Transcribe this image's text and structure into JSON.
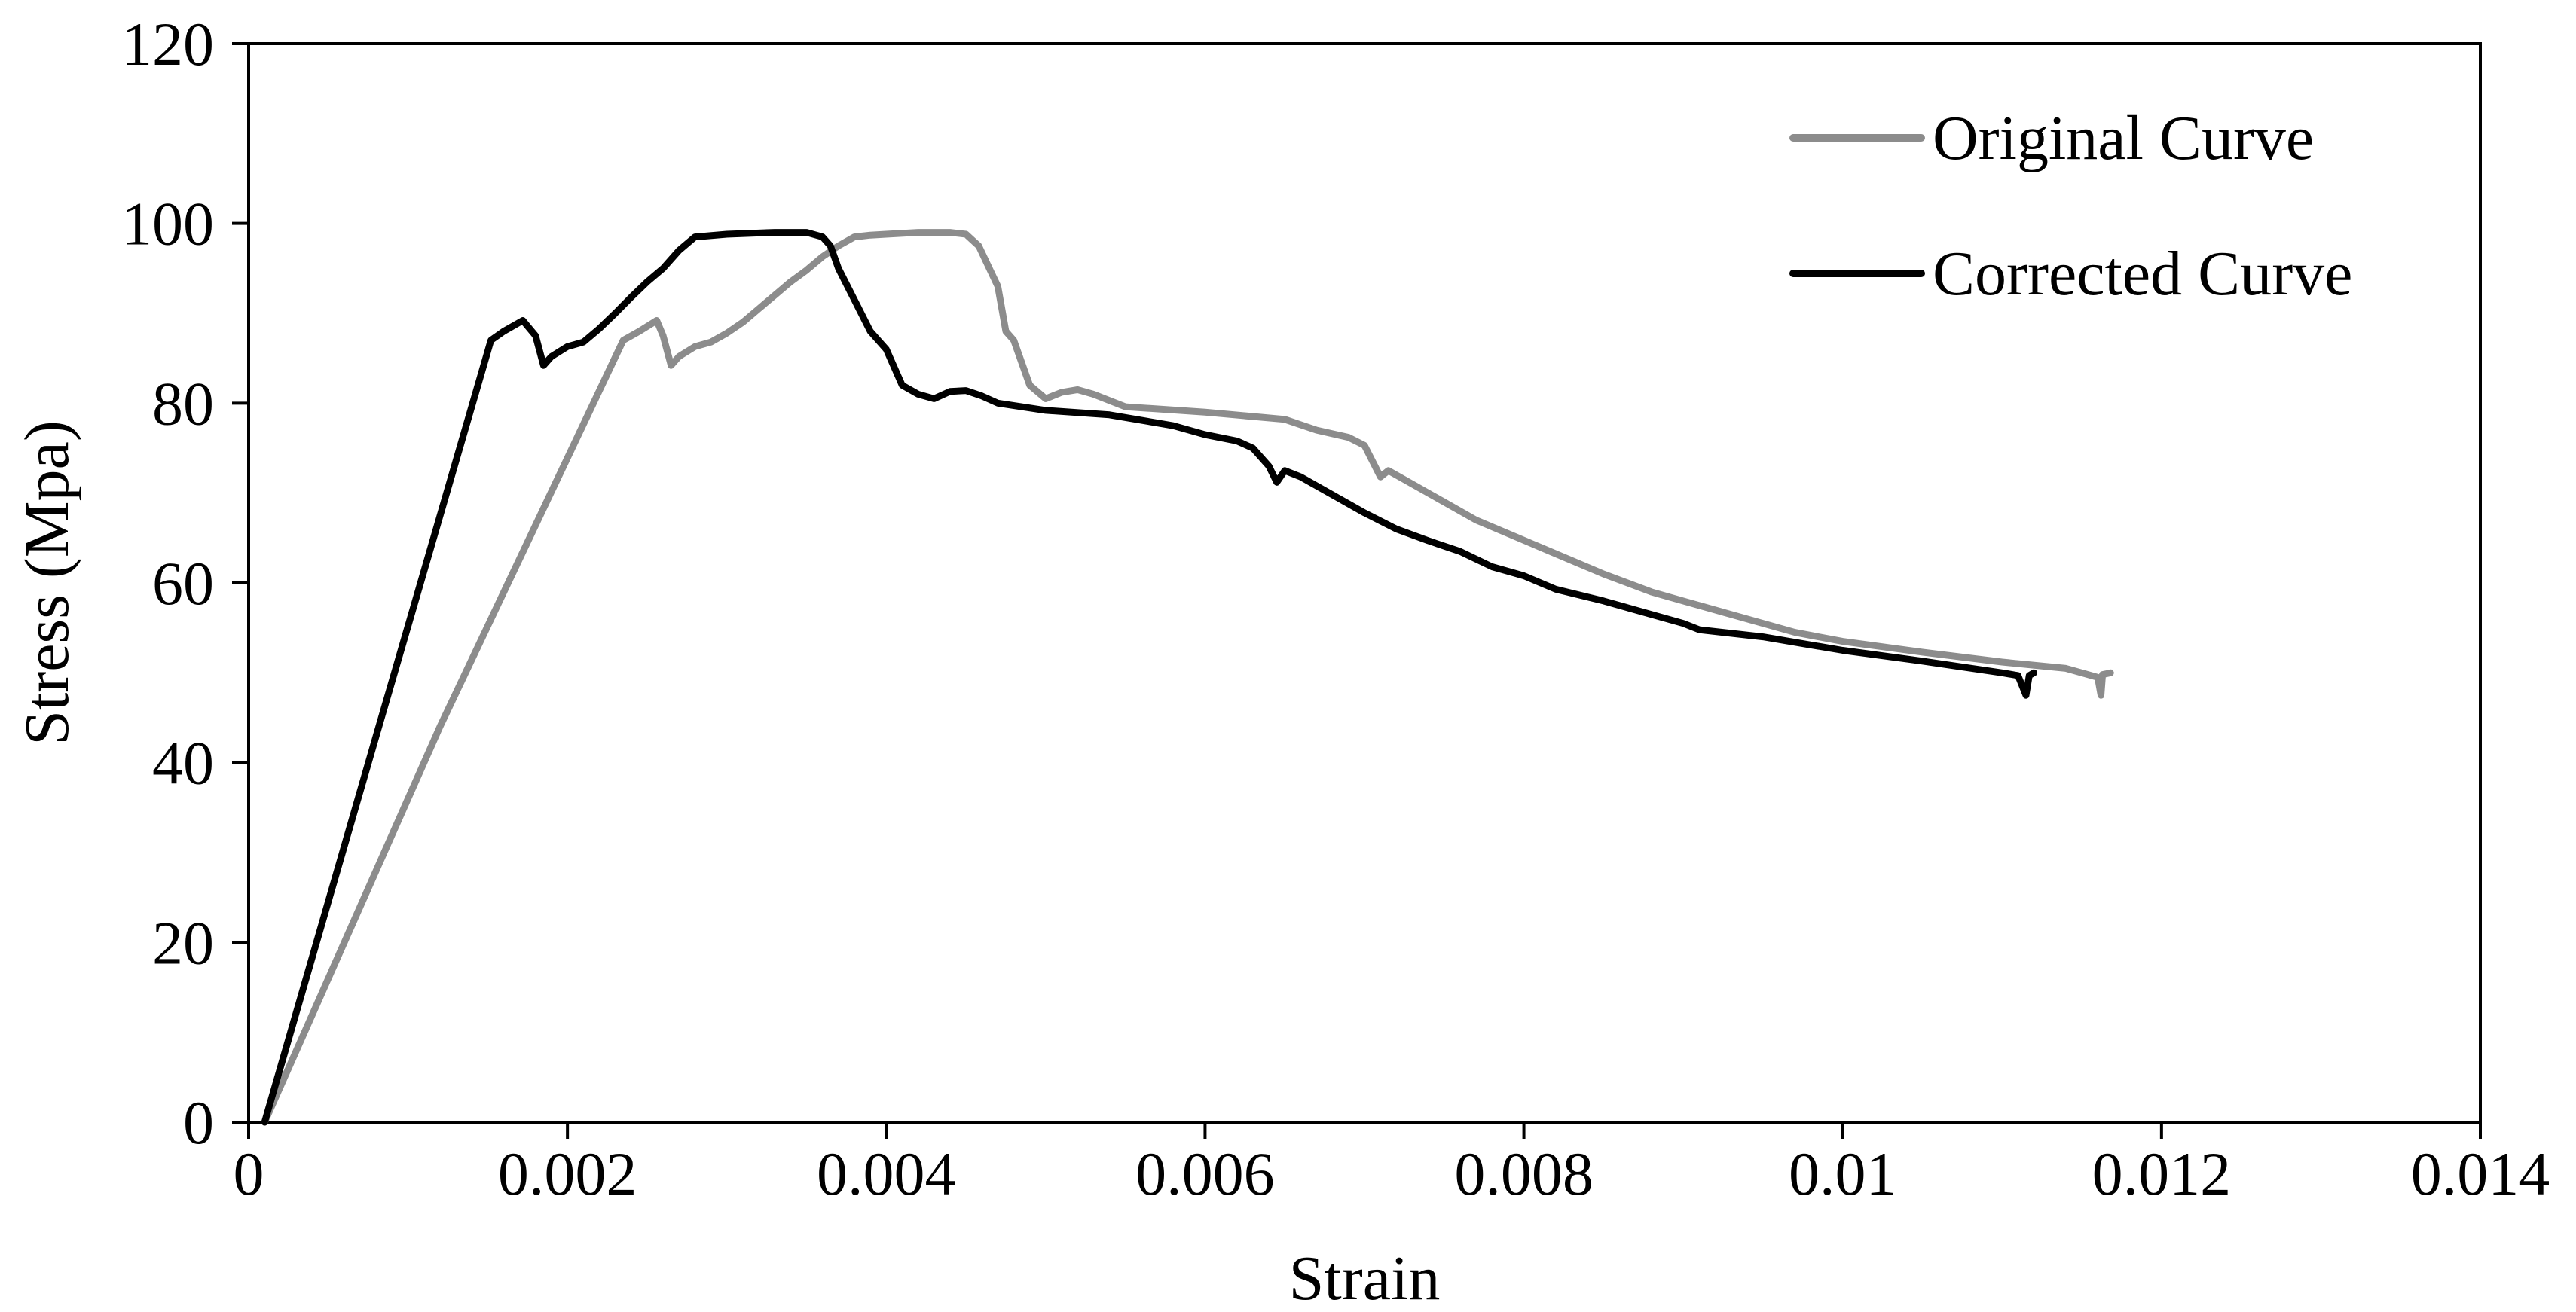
{
  "chart_data": {
    "type": "line",
    "title": "",
    "xlabel": "Strain",
    "ylabel": "Stress (Mpa)",
    "xlim": [
      0,
      0.014
    ],
    "ylim": [
      0,
      120
    ],
    "xticks": [
      0,
      0.002,
      0.004,
      0.006,
      0.008,
      0.01,
      0.012,
      0.014
    ],
    "xtick_labels": [
      "0",
      "0.002",
      "0.004",
      "0.006",
      "0.008",
      "0.01",
      "0.012",
      "0.014"
    ],
    "yticks": [
      0,
      20,
      40,
      60,
      80,
      100,
      120
    ],
    "ytick_labels": [
      "0",
      "20",
      "40",
      "60",
      "80",
      "100",
      "120"
    ],
    "grid": false,
    "legend_position": "top-right",
    "series": [
      {
        "name": "Original Curve",
        "color": "#8c8c8c",
        "points": [
          [
            0.0001,
            0
          ],
          [
            0.0012,
            44
          ],
          [
            0.00235,
            87
          ],
          [
            0.00245,
            88
          ],
          [
            0.00256,
            89.2
          ],
          [
            0.0026,
            87.5
          ],
          [
            0.00265,
            84.2
          ],
          [
            0.0027,
            85.2
          ],
          [
            0.0028,
            86.3
          ],
          [
            0.0029,
            86.8
          ],
          [
            0.003,
            87.8
          ],
          [
            0.0031,
            89
          ],
          [
            0.0032,
            90.5
          ],
          [
            0.0033,
            92
          ],
          [
            0.0034,
            93.5
          ],
          [
            0.0035,
            94.8
          ],
          [
            0.0036,
            96.3
          ],
          [
            0.0037,
            97.5
          ],
          [
            0.0038,
            98.5
          ],
          [
            0.0039,
            98.7
          ],
          [
            0.004,
            98.8
          ],
          [
            0.0042,
            99
          ],
          [
            0.0043,
            99
          ],
          [
            0.0044,
            99
          ],
          [
            0.0045,
            98.8
          ],
          [
            0.00458,
            97.5
          ],
          [
            0.0047,
            93
          ],
          [
            0.00475,
            88
          ],
          [
            0.0048,
            87
          ],
          [
            0.0049,
            82
          ],
          [
            0.005,
            80.5
          ],
          [
            0.0051,
            81.2
          ],
          [
            0.0052,
            81.5
          ],
          [
            0.0053,
            81
          ],
          [
            0.0054,
            80.3
          ],
          [
            0.0055,
            79.6
          ],
          [
            0.006,
            79
          ],
          [
            0.0065,
            78.2
          ],
          [
            0.0067,
            77
          ],
          [
            0.0069,
            76.2
          ],
          [
            0.007,
            75.3
          ],
          [
            0.0071,
            71.8
          ],
          [
            0.00715,
            72.5
          ],
          [
            0.0073,
            71
          ],
          [
            0.0075,
            69
          ],
          [
            0.0077,
            67
          ],
          [
            0.0079,
            65.5
          ],
          [
            0.0081,
            64
          ],
          [
            0.0083,
            62.5
          ],
          [
            0.0085,
            61
          ],
          [
            0.0088,
            59
          ],
          [
            0.009,
            58
          ],
          [
            0.0093,
            56.5
          ],
          [
            0.0095,
            55.5
          ],
          [
            0.0097,
            54.5
          ],
          [
            0.01,
            53.5
          ],
          [
            0.0105,
            52.3
          ],
          [
            0.011,
            51.2
          ],
          [
            0.0114,
            50.5
          ],
          [
            0.0116,
            49.5
          ],
          [
            0.01162,
            47.5
          ],
          [
            0.01163,
            49.8
          ],
          [
            0.01168,
            50
          ]
        ]
      },
      {
        "name": "Corrected Curve",
        "color": "#000000",
        "points": [
          [
            0.0001,
            0
          ],
          [
            0.0008,
            43
          ],
          [
            0.00152,
            87
          ],
          [
            0.0016,
            88
          ],
          [
            0.00172,
            89.2
          ],
          [
            0.0018,
            87.5
          ],
          [
            0.00185,
            84.2
          ],
          [
            0.0019,
            85.2
          ],
          [
            0.002,
            86.3
          ],
          [
            0.0021,
            86.8
          ],
          [
            0.0022,
            88.3
          ],
          [
            0.0023,
            90
          ],
          [
            0.0024,
            91.8
          ],
          [
            0.0025,
            93.5
          ],
          [
            0.0026,
            95
          ],
          [
            0.0027,
            97
          ],
          [
            0.0028,
            98.5
          ],
          [
            0.003,
            98.8
          ],
          [
            0.0033,
            99
          ],
          [
            0.0035,
            99
          ],
          [
            0.0036,
            98.5
          ],
          [
            0.00365,
            97.5
          ],
          [
            0.0037,
            95
          ],
          [
            0.0038,
            91.5
          ],
          [
            0.0039,
            88
          ],
          [
            0.004,
            86
          ],
          [
            0.0041,
            82
          ],
          [
            0.0042,
            81
          ],
          [
            0.0043,
            80.5
          ],
          [
            0.0044,
            81.3
          ],
          [
            0.0045,
            81.4
          ],
          [
            0.0046,
            80.8
          ],
          [
            0.0047,
            80
          ],
          [
            0.005,
            79.2
          ],
          [
            0.0054,
            78.7
          ],
          [
            0.0058,
            77.5
          ],
          [
            0.006,
            76.5
          ],
          [
            0.0062,
            75.8
          ],
          [
            0.0063,
            75
          ],
          [
            0.0064,
            73
          ],
          [
            0.00645,
            71.2
          ],
          [
            0.0065,
            72.5
          ],
          [
            0.0066,
            71.8
          ],
          [
            0.0068,
            69.8
          ],
          [
            0.007,
            67.8
          ],
          [
            0.0072,
            66
          ],
          [
            0.0074,
            64.7
          ],
          [
            0.0076,
            63.5
          ],
          [
            0.0078,
            61.8
          ],
          [
            0.008,
            60.8
          ],
          [
            0.0082,
            59.3
          ],
          [
            0.0085,
            58
          ],
          [
            0.0088,
            56.5
          ],
          [
            0.009,
            55.5
          ],
          [
            0.0091,
            54.8
          ],
          [
            0.0095,
            54
          ],
          [
            0.01,
            52.5
          ],
          [
            0.0105,
            51.3
          ],
          [
            0.011,
            50
          ],
          [
            0.0111,
            49.7
          ],
          [
            0.01115,
            47.5
          ],
          [
            0.01117,
            49.7
          ],
          [
            0.0112,
            50
          ]
        ]
      }
    ]
  }
}
